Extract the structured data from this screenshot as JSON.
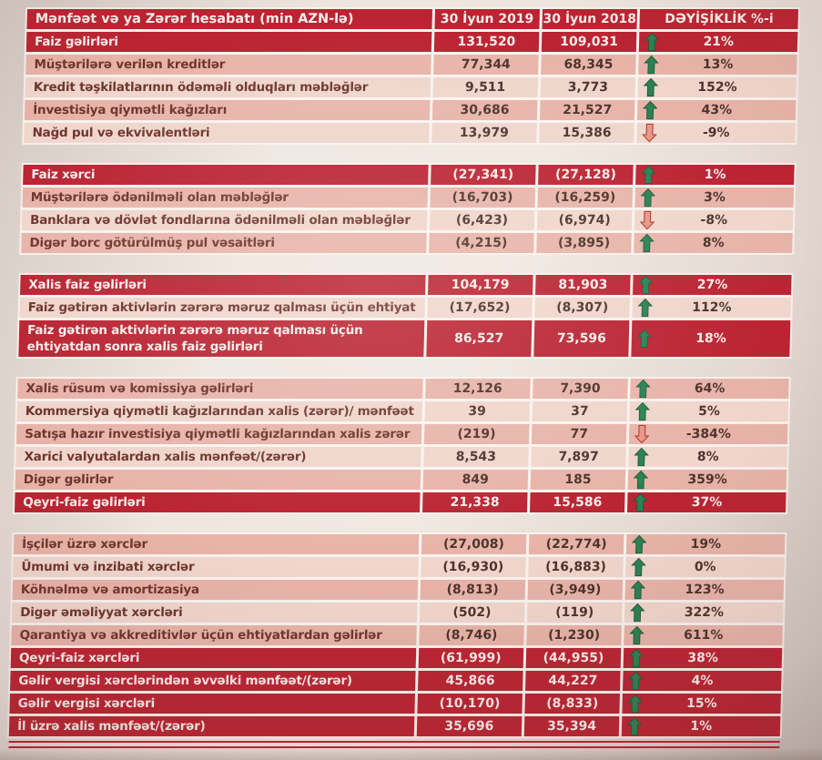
{
  "header": {
    "col_label": "Mənfəət və ya Zərər hesabatı  (min AZN-lə)",
    "col_2019": "30 İyun 2019",
    "col_2018": "30 İyun 2018",
    "col_change": "DƏYİŞİKLİK %-i"
  },
  "sections": [
    {
      "rows": [
        {
          "label": "Faiz gəlirləri",
          "v2019": "131,520",
          "v2018": "109,031",
          "dir": "up",
          "pct": "21%",
          "style": "total"
        },
        {
          "label": "Müştərilərə verilən kreditlər",
          "v2019": "77,344",
          "v2018": "68,345",
          "dir": "up",
          "pct": "13%",
          "style": "pink"
        },
        {
          "label": "Kredit təşkilatlarının ödəməli olduqları məbləğlər",
          "v2019": "9,511",
          "v2018": "3,773",
          "dir": "up",
          "pct": "152%",
          "style": "light"
        },
        {
          "label": "İnvestisiya qiymətli kağızları",
          "v2019": "30,686",
          "v2018": "21,527",
          "dir": "up",
          "pct": "43%",
          "style": "pink"
        },
        {
          "label": "Nağd pul və ekvivalentləri",
          "v2019": "13,979",
          "v2018": "15,386",
          "dir": "down",
          "pct": "-9%",
          "style": "light"
        }
      ]
    },
    {
      "rows": [
        {
          "label": "Faiz xərci",
          "v2019": "(27,341)",
          "v2018": "(27,128)",
          "dir": "up",
          "pct": "1%",
          "style": "total"
        },
        {
          "label": "Müştərilərə ödənilməli olan məbləğlər",
          "v2019": "(16,703)",
          "v2018": "(16,259)",
          "dir": "up",
          "pct": "3%",
          "style": "pink"
        },
        {
          "label": "Banklara və dövlət fondlarına ödənilməli olan məbləğlər",
          "v2019": "(6,423)",
          "v2018": "(6,974)",
          "dir": "down",
          "pct": "-8%",
          "style": "light"
        },
        {
          "label": "Digər borc götürülmüş pul vəsaitləri",
          "v2019": "(4,215)",
          "v2018": "(3,895)",
          "dir": "up",
          "pct": "8%",
          "style": "pink"
        }
      ]
    },
    {
      "rows": [
        {
          "label": "Xalis faiz gəlirləri",
          "v2019": "104,179",
          "v2018": "81,903",
          "dir": "up",
          "pct": "27%",
          "style": "total"
        },
        {
          "label": "Faiz gətirən aktivlərin zərərə məruz qalması üçün ehtiyat",
          "v2019": "(17,652)",
          "v2018": "(8,307)",
          "dir": "up",
          "pct": "112%",
          "style": "light"
        },
        {
          "label": "Faiz gətirən aktivlərin zərərə məruz qalması üçün ehtiyatdan sonra xalis faiz gəlirləri",
          "v2019": "86,527",
          "v2018": "73,596",
          "dir": "up",
          "pct": "18%",
          "style": "total",
          "tall": true
        }
      ]
    },
    {
      "rows": [
        {
          "label": "Xalis rüsum və komissiya gəlirləri",
          "v2019": "12,126",
          "v2018": "7,390",
          "dir": "up",
          "pct": "64%",
          "style": "pink"
        },
        {
          "label": "Kommersiya qiymətli kağızlarından xalis (zərər)/ mənfəət",
          "v2019": "39",
          "v2018": "37",
          "dir": "up",
          "pct": "5%",
          "style": "light"
        },
        {
          "label": "Satışa hazır investisiya qiymətli kağızlarından xalis zərər",
          "v2019": "(219)",
          "v2018": "77",
          "dir": "down",
          "pct": "-384%",
          "style": "pink"
        },
        {
          "label": "Xarici valyutalardan xalis mənfəət/(zərər)",
          "v2019": "8,543",
          "v2018": "7,897",
          "dir": "up",
          "pct": "8%",
          "style": "light"
        },
        {
          "label": "Digər gəlirlər",
          "v2019": "849",
          "v2018": "185",
          "dir": "up",
          "pct": "359%",
          "style": "pink"
        },
        {
          "label": "Qeyri-faiz gəlirləri",
          "v2019": "21,338",
          "v2018": "15,586",
          "dir": "up",
          "pct": "37%",
          "style": "total"
        }
      ]
    },
    {
      "rows": [
        {
          "label": "İşçilər üzrə xərclər",
          "v2019": "(27,008)",
          "v2018": "(22,774)",
          "dir": "up",
          "pct": "19%",
          "style": "pink"
        },
        {
          "label": "Ümumi və inzibati xərclər",
          "v2019": "(16,930)",
          "v2018": "(16,883)",
          "dir": "up",
          "pct": "0%",
          "style": "light"
        },
        {
          "label": "Köhnəlmə və amortizasiya",
          "v2019": "(8,813)",
          "v2018": "(3,949)",
          "dir": "up",
          "pct": "123%",
          "style": "pink"
        },
        {
          "label": "Digər əməliyyat xərcləri",
          "v2019": "(502)",
          "v2018": "(119)",
          "dir": "up",
          "pct": "322%",
          "style": "light"
        },
        {
          "label": "Qarantiya və akkreditivlər üçün ehtiyatlardan gəlirlər",
          "v2019": "(8,746)",
          "v2018": "(1,230)",
          "dir": "up",
          "pct": "611%",
          "style": "pink"
        },
        {
          "label": "Qeyri-faiz xərcləri",
          "v2019": "(61,999)",
          "v2018": "(44,955)",
          "dir": "up",
          "pct": "38%",
          "style": "total"
        },
        {
          "label": "Gəlir vergisi xərclərindən əvvəlki mənfəət/(zərər)",
          "v2019": "45,866",
          "v2018": "44,227",
          "dir": "up",
          "pct": "4%",
          "style": "total"
        },
        {
          "label": "Gəlir vergisi xərcləri",
          "v2019": "(10,170)",
          "v2018": "(8,833)",
          "dir": "up",
          "pct": "15%",
          "style": "total"
        },
        {
          "label": "İl üzrə xalis mənfəət/(zərər)",
          "v2019": "35,696",
          "v2018": "35,394",
          "dir": "up",
          "pct": "1%",
          "style": "total"
        }
      ]
    }
  ],
  "colors": {
    "dark_red": "#bb2433",
    "pink_row": "#e8b4aa",
    "light_row": "#f0d6cc",
    "label_text": "#6e352d",
    "num_text": "#4d332b",
    "on_red_text": "#f7edea",
    "up_arrow": "#2c8153",
    "up_arrow_dark": "#1f5c3c",
    "down_arrow": "#e5988a",
    "down_arrow_dark": "#b53a2d"
  }
}
